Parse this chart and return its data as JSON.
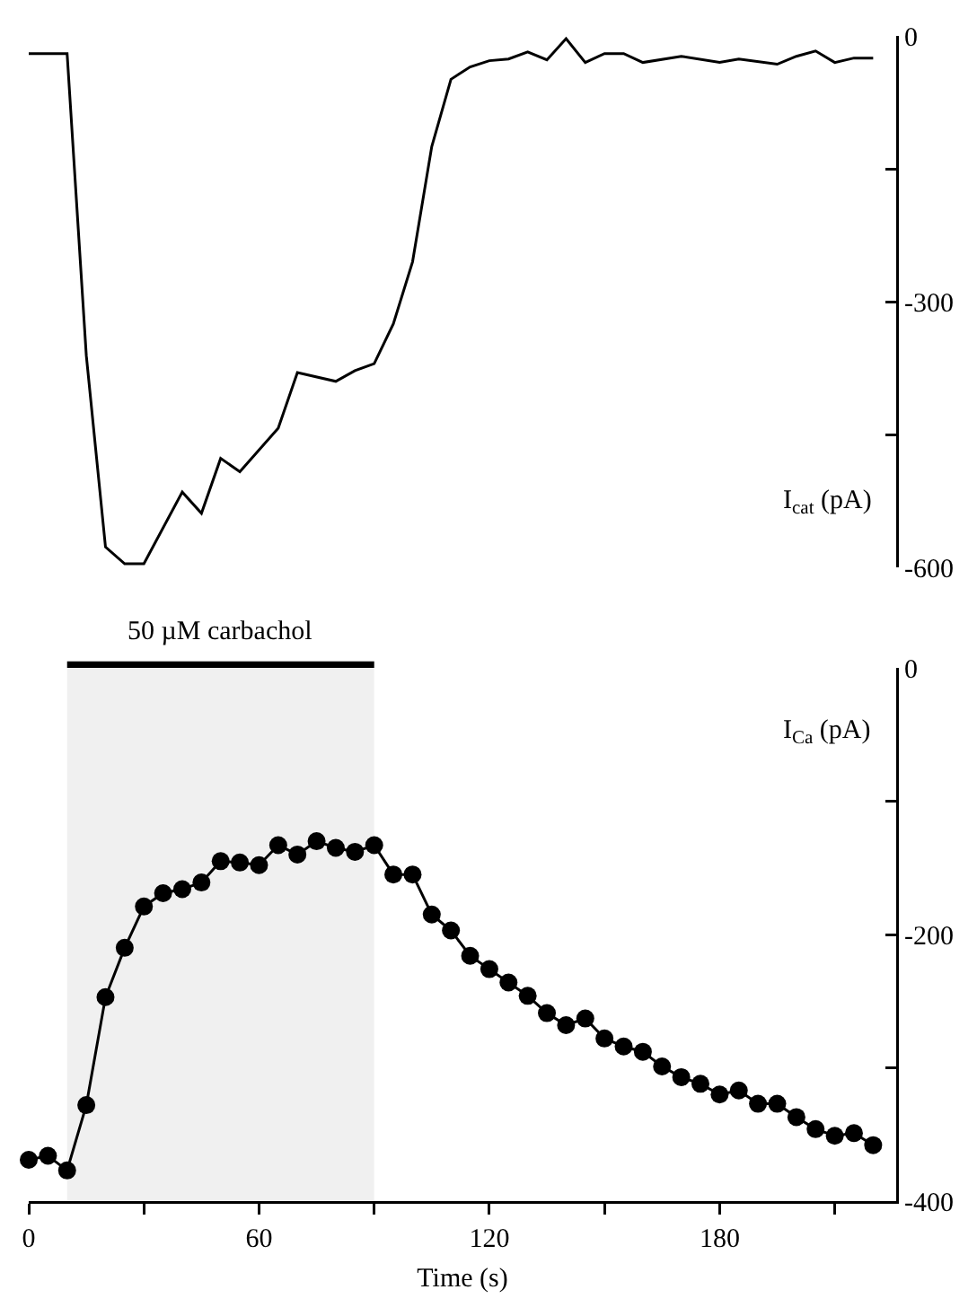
{
  "chart_data": [
    {
      "type": "line",
      "ylabel": "I$_{cat}$ (pA)",
      "xlim": [
        0,
        226
      ],
      "ylim": [
        -600,
        0
      ],
      "yticks": [
        0,
        {
          "value": -150,
          "label": null
        },
        -300,
        {
          "value": -450,
          "label": null
        },
        -600
      ],
      "tick_labels": "y",
      "marker": "none",
      "grid": false,
      "series": [
        {
          "color": "#000000",
          "x": [
            0,
            10,
            15,
            20,
            25,
            30,
            40,
            45,
            50,
            55,
            65,
            70,
            80,
            85,
            90,
            95,
            100,
            105,
            110,
            115,
            120,
            125,
            130,
            135,
            140,
            145,
            150,
            155,
            160,
            170,
            180,
            185,
            195,
            200,
            205,
            210,
            215,
            220
          ],
          "values": [
            -20,
            -20,
            -361,
            -577,
            -596,
            -596,
            -515,
            -539,
            -477,
            -492,
            -443,
            -380,
            -390,
            -378,
            -370,
            -325,
            -255,
            -125,
            -49,
            -35,
            -28,
            -26,
            -18,
            -27,
            -3,
            -30,
            -20,
            -20,
            -30,
            -23,
            -30,
            -26,
            -32,
            -23,
            -17,
            -30,
            -25,
            -25
          ]
        }
      ]
    },
    {
      "type": "line",
      "xlabel": "Time (s)",
      "ylabel": "I$_{Ca}$ (pA)",
      "xlim": [
        0,
        226
      ],
      "xticks": [
        0,
        {
          "value": 30,
          "label": null
        },
        60,
        {
          "value": 90,
          "label": null
        },
        120,
        {
          "value": 150,
          "label": null
        },
        180,
        {
          "value": 210,
          "label": null
        }
      ],
      "ylim": [
        -400,
        0
      ],
      "yticks": [
        0,
        {
          "value": -100,
          "label": null
        },
        -200,
        {
          "value": -300,
          "label": null
        },
        -400
      ],
      "marker": "circle",
      "grid": false,
      "bands": [
        {
          "axis": "x",
          "from": 10,
          "to": 90,
          "label": "50 µM carbachol",
          "color": "#000000"
        }
      ],
      "series": [
        {
          "color": "#000000",
          "x": [
            0,
            5,
            10,
            15,
            20,
            25,
            30,
            35,
            40,
            45,
            50,
            55,
            60,
            65,
            70,
            75,
            80,
            85,
            90,
            95,
            100,
            105,
            110,
            115,
            120,
            125,
            130,
            135,
            140,
            145,
            150,
            155,
            160,
            165,
            170,
            175,
            180,
            185,
            190,
            195,
            200,
            205,
            210,
            215,
            220
          ],
          "values": [
            -369,
            -366,
            -377,
            -328,
            -247,
            -210,
            -179,
            -169,
            -166,
            -161,
            -145,
            -146,
            -148,
            -133,
            -140,
            -130,
            -135,
            -138,
            -133,
            -155,
            -155,
            -185,
            -197,
            -216,
            -226,
            -236,
            -246,
            -259,
            -268,
            -263,
            -278,
            -284,
            -288,
            -299,
            -307,
            -312,
            -320,
            -317,
            -327,
            -327,
            -337,
            -346,
            -351,
            -349,
            -358
          ]
        }
      ]
    }
  ]
}
